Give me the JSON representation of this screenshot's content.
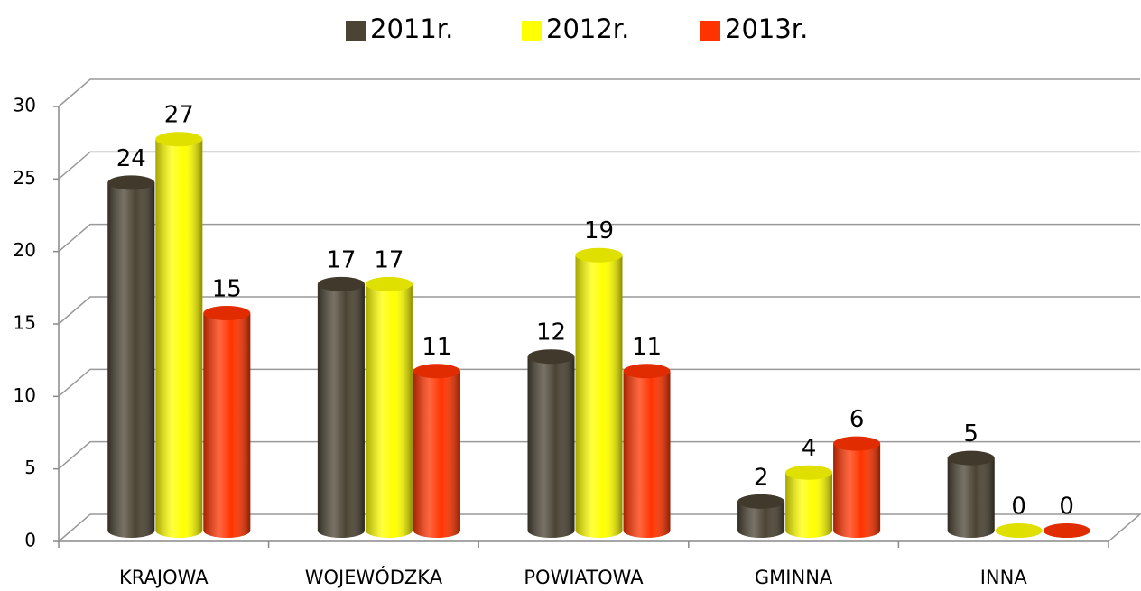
{
  "chart_data": {
    "type": "bar",
    "categories": [
      "KRAJOWA",
      "WOJEWÓDZKA",
      "POWIATOWA",
      "GMINNA",
      "INNA"
    ],
    "series": [
      {
        "name": "2011r.",
        "color": "#4b4333",
        "values": [
          24,
          17,
          12,
          2,
          5
        ]
      },
      {
        "name": "2012r.",
        "color": "#ffff00",
        "values": [
          27,
          17,
          19,
          4,
          0
        ]
      },
      {
        "name": "2013r.",
        "color": "#ff3300",
        "values": [
          15,
          11,
          11,
          6,
          0
        ]
      }
    ],
    "ylim": [
      0,
      30
    ],
    "yticks": [
      0,
      5,
      10,
      15,
      20,
      25,
      30
    ],
    "grid": true,
    "legend": "top"
  }
}
